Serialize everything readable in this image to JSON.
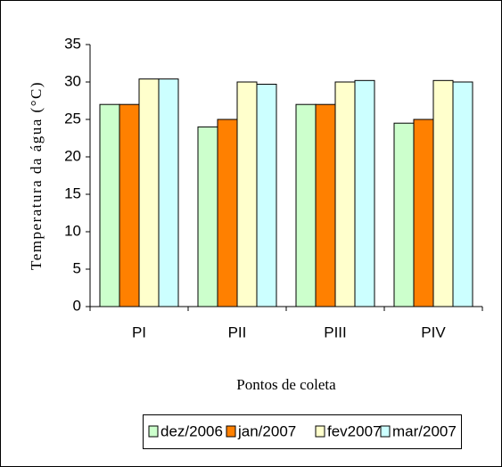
{
  "chart_data": {
    "type": "bar",
    "y_label": "Temperatura da água (°C)",
    "x_label": "Pontos de coleta",
    "categories": [
      "PI",
      "PII",
      "PIII",
      "PIV"
    ],
    "series": [
      {
        "name": "dez/2006",
        "color": "#ccffcc",
        "values": [
          27,
          24,
          27,
          24.5
        ]
      },
      {
        "name": "jan/2007",
        "color": "#ff8000",
        "values": [
          27,
          25,
          27,
          25
        ]
      },
      {
        "name": "fev2007",
        "color": "#ffffcc",
        "values": [
          30.4,
          30,
          30,
          30.2
        ]
      },
      {
        "name": "mar/2007",
        "color": "#ccffff",
        "values": [
          30.4,
          29.7,
          30.2,
          30
        ]
      }
    ],
    "ylim": [
      0,
      35
    ],
    "yticks": [
      0,
      5,
      10,
      15,
      20,
      25,
      30,
      35
    ],
    "legend": "bottom"
  }
}
